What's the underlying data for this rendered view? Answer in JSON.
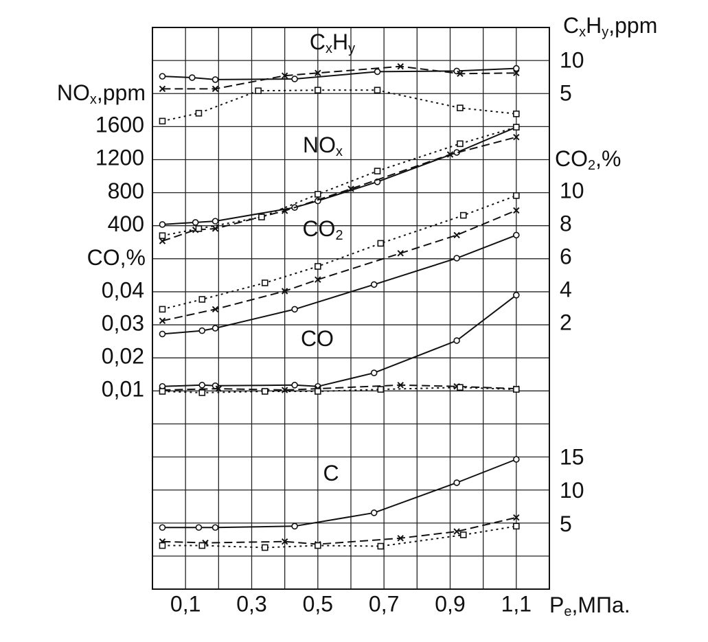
{
  "chart_data": [
    {
      "type": "line",
      "side": "right",
      "label": [
        {
          "t": "C"
        },
        {
          "t": "x",
          "sub": true
        },
        {
          "t": "H"
        },
        {
          "t": "y",
          "sub": true
        }
      ],
      "axis_label": [
        {
          "t": "C"
        },
        {
          "t": "x",
          "sub": true
        },
        {
          "t": "H"
        },
        {
          "t": "y",
          "sub": true
        },
        {
          "t": ",ppm"
        }
      ],
      "ylim": [
        0,
        15
      ],
      "yticks": [
        5,
        10
      ],
      "series": [
        {
          "marker": "circle",
          "dash": "solid",
          "color": "#111",
          "x": [
            0.03,
            0.12,
            0.19,
            0.43,
            0.68,
            0.92,
            1.1
          ],
          "values": [
            7.8,
            7.6,
            7.3,
            7.4,
            8.5,
            8.6,
            9.0
          ]
        },
        {
          "marker": "cross",
          "dash": "dashed",
          "color": "#111",
          "x": [
            0.03,
            0.19,
            0.4,
            0.5,
            0.75,
            0.93,
            1.1
          ],
          "values": [
            5.9,
            5.9,
            7.9,
            8.3,
            9.3,
            8.2,
            8.3
          ]
        },
        {
          "marker": "square",
          "dash": "dotted",
          "color": "#111",
          "x": [
            0.03,
            0.14,
            0.32,
            0.5,
            0.68,
            0.93,
            1.1
          ],
          "values": [
            1.0,
            2.2,
            5.6,
            5.7,
            5.7,
            3.0,
            2.1
          ]
        }
      ]
    },
    {
      "type": "line",
      "side": "left",
      "label": [
        {
          "t": "NO"
        },
        {
          "t": "x",
          "sub": true
        }
      ],
      "axis_label": [
        {
          "t": "NO"
        },
        {
          "t": "x",
          "sub": true
        },
        {
          "t": ",ppm"
        }
      ],
      "ylim": [
        0,
        1600
      ],
      "yticks": [
        400,
        800,
        1200,
        1600
      ],
      "series": [
        {
          "marker": "circle",
          "dash": "solid",
          "color": "#111",
          "x": [
            0.03,
            0.13,
            0.19,
            0.43,
            0.5,
            0.68,
            0.92,
            1.1
          ],
          "values": [
            415,
            440,
            455,
            620,
            700,
            930,
            1285,
            1590
          ]
        },
        {
          "marker": "cross",
          "dash": "dashed",
          "color": "#111",
          "x": [
            0.03,
            0.13,
            0.19,
            0.4,
            0.6,
            0.9,
            1.1
          ],
          "values": [
            215,
            350,
            365,
            580,
            845,
            1260,
            1470
          ]
        },
        {
          "marker": "square",
          "dash": "dotted",
          "color": "#111",
          "x": [
            0.03,
            0.14,
            0.33,
            0.5,
            0.68,
            0.93,
            1.1
          ],
          "values": [
            280,
            365,
            505,
            780,
            1060,
            1390,
            1590
          ]
        }
      ]
    },
    {
      "type": "line",
      "side": "right",
      "label": [
        {
          "t": "CO"
        },
        {
          "t": "2",
          "sub": true
        }
      ],
      "axis_label": [
        {
          "t": "CO"
        },
        {
          "t": "2",
          "sub": true
        },
        {
          "t": ",%"
        }
      ],
      "ylim": [
        0,
        10
      ],
      "yticks": [
        2,
        4,
        6,
        8,
        10
      ],
      "series": [
        {
          "marker": "circle",
          "dash": "solid",
          "color": "#111",
          "x": [
            0.03,
            0.15,
            0.19,
            0.43,
            0.67,
            0.92,
            1.1
          ],
          "values": [
            1.4,
            1.6,
            1.75,
            2.9,
            4.4,
            6.0,
            7.4
          ]
        },
        {
          "marker": "cross",
          "dash": "dashed",
          "color": "#111",
          "x": [
            0.03,
            0.19,
            0.4,
            0.5,
            0.75,
            0.92,
            1.1
          ],
          "values": [
            2.2,
            2.9,
            4.0,
            4.7,
            6.3,
            7.4,
            8.9
          ]
        },
        {
          "marker": "square",
          "dash": "dotted",
          "color": "#111",
          "x": [
            0.03,
            0.15,
            0.34,
            0.5,
            0.69,
            0.94,
            1.1
          ],
          "values": [
            2.9,
            3.5,
            4.5,
            5.5,
            6.9,
            8.6,
            9.8
          ]
        }
      ]
    },
    {
      "type": "line",
      "side": "left",
      "label": [
        {
          "t": "CO"
        }
      ],
      "axis_label": [
        {
          "t": "CO,%"
        }
      ],
      "ylim": [
        0,
        0.04
      ],
      "yticks": [
        {
          "value": 0.01,
          "label": "0,01"
        },
        {
          "value": 0.02,
          "label": "0,02"
        },
        {
          "value": 0.03,
          "label": "0,03"
        },
        {
          "value": 0.04,
          "label": "0,04"
        }
      ],
      "series": [
        {
          "marker": "circle",
          "dash": "solid",
          "color": "#111",
          "x": [
            0.03,
            0.15,
            0.19,
            0.43,
            0.5,
            0.67,
            0.92,
            1.1
          ],
          "values": [
            0.0113,
            0.0117,
            0.0115,
            0.0117,
            0.0113,
            0.0154,
            0.0252,
            0.039
          ]
        },
        {
          "marker": "cross",
          "dash": "dashed",
          "color": "#111",
          "x": [
            0.03,
            0.2,
            0.4,
            0.5,
            0.75,
            0.92,
            1.1
          ],
          "values": [
            0.0102,
            0.0106,
            0.0102,
            0.0106,
            0.0117,
            0.0113,
            0.0106
          ]
        },
        {
          "marker": "square",
          "dash": "dotted",
          "color": "#111",
          "x": [
            0.03,
            0.15,
            0.34,
            0.5,
            0.69,
            0.93,
            1.1
          ],
          "values": [
            0.0098,
            0.0094,
            0.0098,
            0.0098,
            0.0104,
            0.011,
            0.0104
          ]
        }
      ]
    },
    {
      "type": "line",
      "side": "right",
      "label": [
        {
          "t": "C"
        }
      ],
      "ylim": [
        0,
        15
      ],
      "yticks": [
        5,
        10,
        15
      ],
      "xlim": [
        0,
        1.2
      ],
      "xticks": [
        {
          "value": 0.1,
          "label": "0,1"
        },
        {
          "value": 0.3,
          "label": "0,3"
        },
        {
          "value": 0.5,
          "label": "0,5"
        },
        {
          "value": 0.7,
          "label": "0,7"
        },
        {
          "value": 0.9,
          "label": "0,9"
        },
        {
          "value": 1.1,
          "label": "1,1"
        }
      ],
      "x_label": [
        {
          "t": "P"
        },
        {
          "t": "e",
          "sub": true
        },
        {
          "t": ",МПа."
        }
      ],
      "series": [
        {
          "marker": "circle",
          "dash": "solid",
          "color": "#111",
          "x": [
            0.03,
            0.14,
            0.19,
            0.43,
            0.67,
            0.92,
            1.1
          ],
          "values": [
            4.7,
            4.7,
            4.7,
            4.9,
            6.9,
            11.4,
            14.9
          ]
        },
        {
          "marker": "cross",
          "dash": "dashed",
          "color": "#111",
          "x": [
            0.03,
            0.16,
            0.4,
            0.5,
            0.75,
            0.92,
            1.1
          ],
          "values": [
            2.6,
            2.4,
            2.6,
            2.2,
            3.1,
            4.1,
            6.2
          ]
        },
        {
          "marker": "square",
          "dash": "dotted",
          "color": "#111",
          "x": [
            0.03,
            0.15,
            0.34,
            0.5,
            0.69,
            0.94,
            1.1
          ],
          "values": [
            2.0,
            2.0,
            1.7,
            2.0,
            1.9,
            3.6,
            4.9
          ]
        }
      ]
    }
  ]
}
